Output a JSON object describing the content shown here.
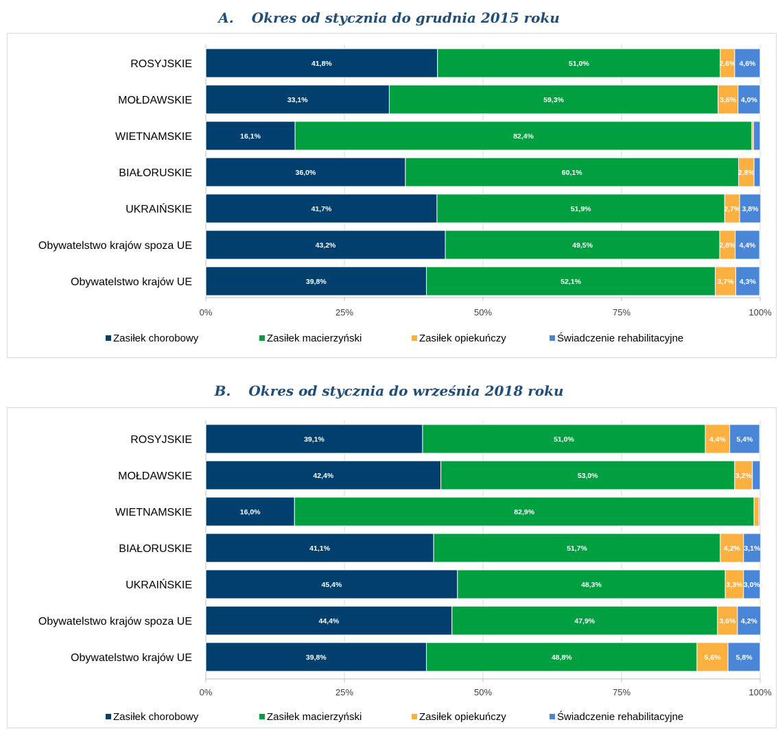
{
  "chart_data": [
    {
      "type": "bar",
      "orientation": "horizontal",
      "stacked": true,
      "panel_letter": "A.",
      "title": "Okres od stycznia do grudnia 2015 roku",
      "categories": [
        "ROSYJSKIE",
        "MOŁDAWSKIE",
        "WIETNAMSKIE",
        "BIAŁORUSKIE",
        "UKRAIŃSKIE",
        "Obywatelstwo krajów spoza UE",
        "Obywatelstwo krajów UE"
      ],
      "series": [
        {
          "name": "Zasiłek chorobowy",
          "color": "#003f6e",
          "values": [
            41.8,
            33.1,
            16.1,
            36.0,
            41.7,
            43.2,
            39.8
          ],
          "labels": [
            "41,8%",
            "33,1%",
            "16,1%",
            "36,0%",
            "41,7%",
            "43,2%",
            "39,8%"
          ]
        },
        {
          "name": "Zasiłek macierzyński",
          "color": "#00a040",
          "values": [
            51.0,
            59.3,
            82.4,
            60.1,
            51.9,
            49.5,
            52.1
          ],
          "labels": [
            "51,0%",
            "59,3%",
            "82,4%",
            "60,1%",
            "51,9%",
            "49,5%",
            "52,1%"
          ]
        },
        {
          "name": "Zasiłek opiekuńczy",
          "color": "#fbb040",
          "values": [
            2.6,
            3.6,
            0.3,
            2.8,
            2.7,
            2.8,
            3.7
          ],
          "labels": [
            "2,6%",
            "3,6%",
            "",
            "2,8%",
            "2,7%",
            "2,8%",
            "3,7%"
          ]
        },
        {
          "name": "Świadczenie rehabilitacyjne",
          "color": "#4a86d8",
          "values": [
            4.6,
            4.0,
            1.2,
            1.1,
            3.8,
            4.4,
            4.3
          ],
          "labels": [
            "4,6%",
            "4,0%",
            "",
            "",
            "3,8%",
            "4,4%",
            "4,3%"
          ]
        }
      ],
      "xticks": [
        "0%",
        "25%",
        "50%",
        "75%",
        "100%"
      ],
      "xlim": [
        0,
        100
      ],
      "legend_position": "bottom"
    },
    {
      "type": "bar",
      "orientation": "horizontal",
      "stacked": true,
      "panel_letter": "B.",
      "title": "Okres od stycznia do września 2018 roku",
      "categories": [
        "ROSYJSKIE",
        "MOŁDAWSKIE",
        "WIETNAMSKIE",
        "BIAŁORUSKIE",
        "UKRAIŃSKIE",
        "Obywatelstwo krajów spoza UE",
        "Obywatelstwo krajów UE"
      ],
      "series": [
        {
          "name": "Zasiłek chorobowy",
          "color": "#003f6e",
          "values": [
            39.1,
            42.4,
            16.0,
            41.1,
            45.4,
            44.4,
            39.8
          ],
          "labels": [
            "39,1%",
            "42,4%",
            "16,0%",
            "41,1%",
            "45,4%",
            "44,4%",
            "39,8%"
          ]
        },
        {
          "name": "Zasiłek macierzyński",
          "color": "#00a040",
          "values": [
            51.0,
            53.0,
            82.9,
            51.7,
            48.3,
            47.9,
            48.8
          ],
          "labels": [
            "51,0%",
            "53,0%",
            "82,9%",
            "51,7%",
            "48,3%",
            "47,9%",
            "48,8%"
          ]
        },
        {
          "name": "Zasiłek opiekuńczy",
          "color": "#fbb040",
          "values": [
            4.4,
            3.2,
            0.9,
            4.2,
            3.3,
            3.6,
            5.6
          ],
          "labels": [
            "4,4%",
            "3,2%",
            "",
            "4,2%",
            "3,3%",
            "3,6%",
            "5,6%"
          ]
        },
        {
          "name": "Świadczenie rehabilitacyjne",
          "color": "#4a86d8",
          "values": [
            5.4,
            1.4,
            0.2,
            3.1,
            3.0,
            4.2,
            5.8
          ],
          "labels": [
            "5,4%",
            "",
            "",
            "3,1%",
            "3,0%",
            "4,2%",
            "5,8%"
          ]
        }
      ],
      "xticks": [
        "0%",
        "25%",
        "50%",
        "75%",
        "100%"
      ],
      "xlim": [
        0,
        100
      ],
      "legend_position": "bottom"
    }
  ]
}
